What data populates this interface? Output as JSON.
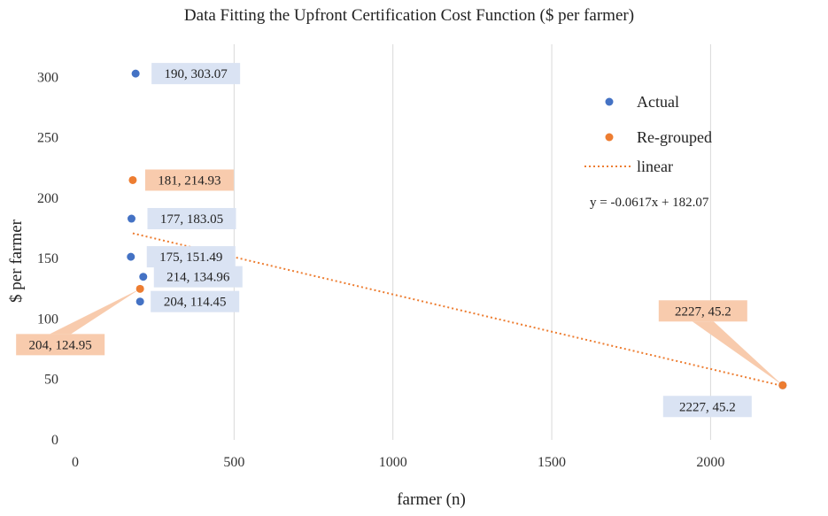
{
  "chart_data": {
    "type": "scatter",
    "title": "Data Fitting  the Upfront  Certification  Cost Function  ($ per farmer)",
    "xlabel": "farmer  (n)",
    "ylabel": "$ per farmer",
    "xlim": [
      0,
      2300
    ],
    "ylim": [
      0,
      320
    ],
    "x_ticks": [
      0,
      500,
      1000,
      1500,
      2000
    ],
    "y_ticks": [
      0,
      50,
      100,
      150,
      200,
      250,
      300
    ],
    "grid": "vertical",
    "legend_position": "right",
    "series": [
      {
        "name": "Actual",
        "color": "#4472c4",
        "label_bg": "#dae3f3",
        "points": [
          {
            "x": 190,
            "y": 303.07,
            "label": "190, 303.07"
          },
          {
            "x": 177,
            "y": 183.05,
            "label": "177, 183.05"
          },
          {
            "x": 175,
            "y": 151.49,
            "label": "175, 151.49"
          },
          {
            "x": 214,
            "y": 134.96,
            "label": "214, 134.96"
          },
          {
            "x": 204,
            "y": 114.45,
            "label": "204, 114.45"
          },
          {
            "x": 2227,
            "y": 45.2,
            "label": "2227, 45.2"
          }
        ]
      },
      {
        "name": "Re-grouped",
        "color": "#ed7d31",
        "label_bg": "#f8cbad",
        "points": [
          {
            "x": 181,
            "y": 214.93,
            "label": "181, 214.93"
          },
          {
            "x": 204,
            "y": 124.95,
            "label": "204, 124.95"
          },
          {
            "x": 2227,
            "y": 45.2,
            "label": "2227, 45.2"
          }
        ]
      }
    ],
    "trendline": {
      "name": "linear",
      "type": "linear",
      "slope": -0.0617,
      "intercept": 182.07,
      "x_range": [
        181,
        2227
      ],
      "color": "#ed7d31",
      "equation": "y = -0.0617x  + 182.07"
    }
  }
}
